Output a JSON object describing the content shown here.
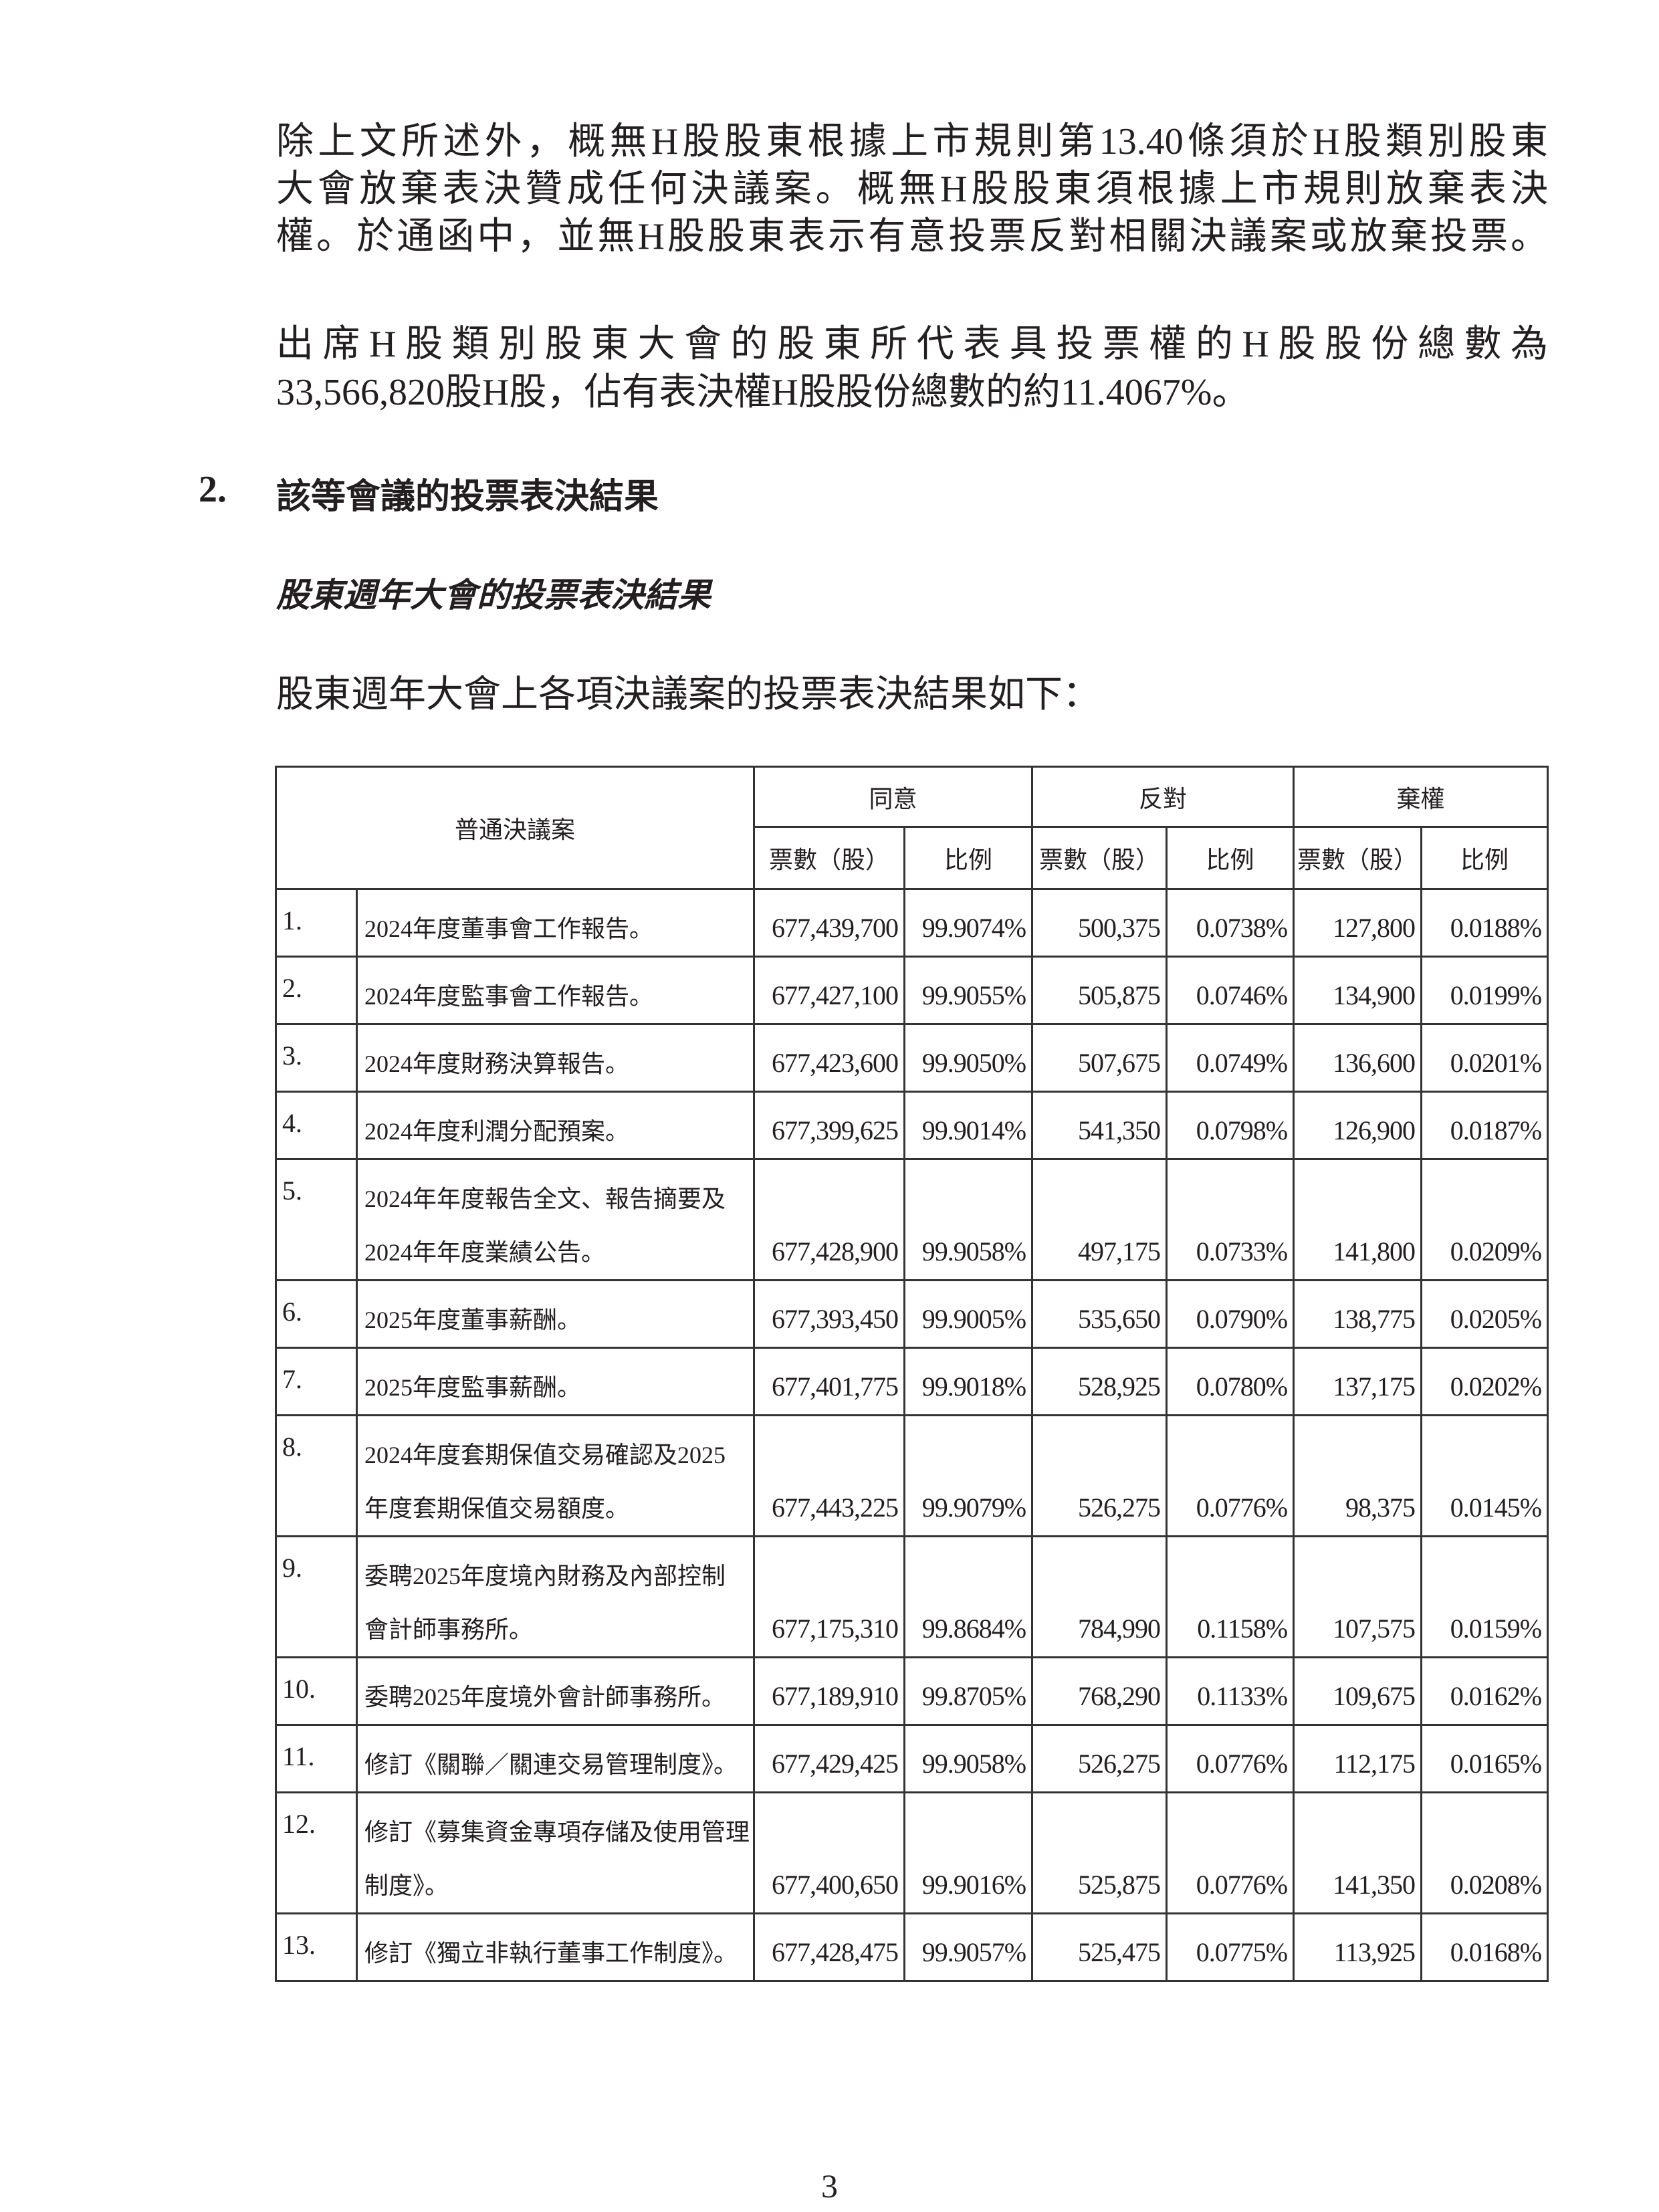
{
  "paragraph1": [
    "除上文所述外，概無H股股東根據上市規則第13.40條須於H股類別股東",
    "大會放棄表決贊成任何決議案。概無H股股東須根據上市規則放棄表決",
    "權。於通函中，並無H股股東表示有意投票反對相關決議案或放棄投票。"
  ],
  "paragraph2": [
    "出席H股類別股東大會的股東所代表具投票權的H股股份總數為",
    "33,566,820股H股，佔有表決權H股股份總數的約11.4067%。"
  ],
  "section": {
    "number": "2.",
    "title": "該等會議的投票表決結果"
  },
  "subheading": "股東週年大會的投票表決結果",
  "intro": "股東週年大會上各項決議案的投票表決結果如下：",
  "table": {
    "header_resolution": "普通決議案",
    "groups": [
      "同意",
      "反對",
      "棄權"
    ],
    "sub_votes": "票數（股）",
    "sub_ratio": "比例",
    "rows": [
      {
        "no": "1.",
        "desc": [
          "2024年度董事會工作報告。"
        ],
        "for": "677,439,700",
        "for_pct": "99.9074%",
        "against": "500,375",
        "against_pct": "0.0738%",
        "abstain": "127,800",
        "abstain_pct": "0.0188%"
      },
      {
        "no": "2.",
        "desc": [
          "2024年度監事會工作報告。"
        ],
        "for": "677,427,100",
        "for_pct": "99.9055%",
        "against": "505,875",
        "against_pct": "0.0746%",
        "abstain": "134,900",
        "abstain_pct": "0.0199%"
      },
      {
        "no": "3.",
        "desc": [
          "2024年度財務決算報告。"
        ],
        "for": "677,423,600",
        "for_pct": "99.9050%",
        "against": "507,675",
        "against_pct": "0.0749%",
        "abstain": "136,600",
        "abstain_pct": "0.0201%"
      },
      {
        "no": "4.",
        "desc": [
          "2024年度利潤分配預案。"
        ],
        "for": "677,399,625",
        "for_pct": "99.9014%",
        "against": "541,350",
        "against_pct": "0.0798%",
        "abstain": "126,900",
        "abstain_pct": "0.0187%"
      },
      {
        "no": "5.",
        "desc": [
          "2024年年度報告全文、報告摘要及",
          "2024年年度業績公告。"
        ],
        "for": "677,428,900",
        "for_pct": "99.9058%",
        "against": "497,175",
        "against_pct": "0.0733%",
        "abstain": "141,800",
        "abstain_pct": "0.0209%"
      },
      {
        "no": "6.",
        "desc": [
          "2025年度董事薪酬。"
        ],
        "for": "677,393,450",
        "for_pct": "99.9005%",
        "against": "535,650",
        "against_pct": "0.0790%",
        "abstain": "138,775",
        "abstain_pct": "0.0205%"
      },
      {
        "no": "7.",
        "desc": [
          "2025年度監事薪酬。"
        ],
        "for": "677,401,775",
        "for_pct": "99.9018%",
        "against": "528,925",
        "against_pct": "0.0780%",
        "abstain": "137,175",
        "abstain_pct": "0.0202%"
      },
      {
        "no": "8.",
        "desc": [
          "2024年度套期保值交易確認及2025",
          "年度套期保值交易額度。"
        ],
        "for": "677,443,225",
        "for_pct": "99.9079%",
        "against": "526,275",
        "against_pct": "0.0776%",
        "abstain": "98,375",
        "abstain_pct": "0.0145%"
      },
      {
        "no": "9.",
        "desc": [
          "委聘2025年度境內財務及內部控制",
          "會計師事務所。"
        ],
        "for": "677,175,310",
        "for_pct": "99.8684%",
        "against": "784,990",
        "against_pct": "0.1158%",
        "abstain": "107,575",
        "abstain_pct": "0.0159%"
      },
      {
        "no": "10.",
        "desc": [
          "委聘2025年度境外會計師事務所。"
        ],
        "for": "677,189,910",
        "for_pct": "99.8705%",
        "against": "768,290",
        "against_pct": "0.1133%",
        "abstain": "109,675",
        "abstain_pct": "0.0162%"
      },
      {
        "no": "11.",
        "desc": [
          "修訂《關聯／關連交易管理制度》。"
        ],
        "for": "677,429,425",
        "for_pct": "99.9058%",
        "against": "526,275",
        "against_pct": "0.0776%",
        "abstain": "112,175",
        "abstain_pct": "0.0165%"
      },
      {
        "no": "12.",
        "desc": [
          "修訂《募集資金專項存儲及使用管理",
          "制度》。"
        ],
        "for": "677,400,650",
        "for_pct": "99.9016%",
        "against": "525,875",
        "against_pct": "0.0776%",
        "abstain": "141,350",
        "abstain_pct": "0.0208%"
      },
      {
        "no": "13.",
        "desc": [
          "修訂《獨立非執行董事工作制度》。"
        ],
        "for": "677,428,475",
        "for_pct": "99.9057%",
        "against": "525,475",
        "against_pct": "0.0775%",
        "abstain": "113,925",
        "abstain_pct": "0.0168%"
      }
    ]
  },
  "page_number": "3"
}
